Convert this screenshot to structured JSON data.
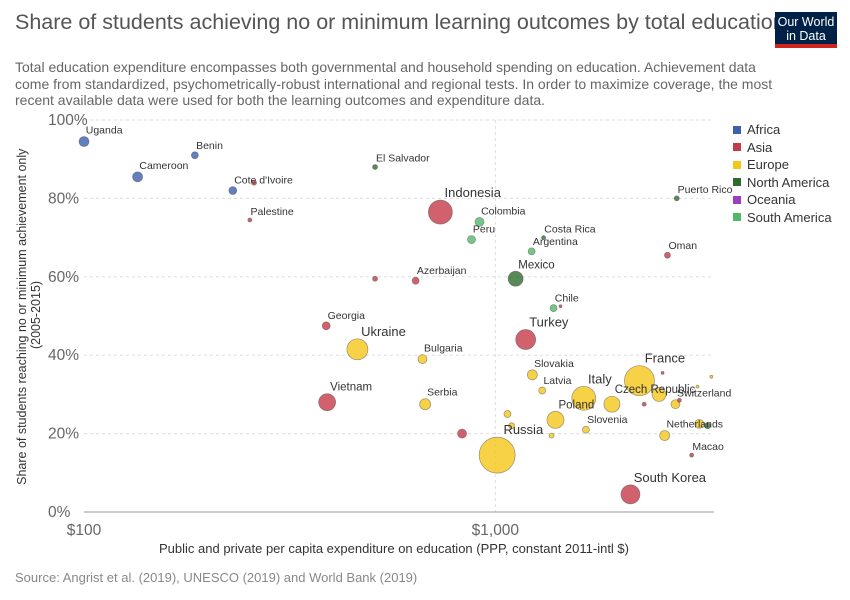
{
  "header": {
    "title": "Share of students achieving no or minimum learning outcomes by total education expenditure per capita",
    "subtitle_lines": [
      "Total education expenditure encompasses both governmental and household spending on education. Achievement data",
      "come from standardized, psychometrically-robust international and regional tests. In order to maximize coverage, the most",
      "recent available data were used for both the learning outcomes and expenditure data."
    ],
    "logo_line1": "Our World",
    "logo_line2": "in Data"
  },
  "source": "Source: Angrist et al. (2019), UNESCO (2019) and World Bank (2019)",
  "legend": [
    {
      "name": "Africa",
      "color": "#3c5fb0"
    },
    {
      "name": "Asia",
      "color": "#c43a49"
    },
    {
      "name": "Europe",
      "color": "#f5c518"
    },
    {
      "name": "North America",
      "color": "#2e6b2e"
    },
    {
      "name": "Oceania",
      "color": "#9b3fbf"
    },
    {
      "name": "South America",
      "color": "#52b96b"
    }
  ],
  "chart_data": {
    "type": "scatter",
    "title": "Share of students achieving no or minimum learning outcomes by total education expenditure per capita",
    "xlabel": "Public and private per capita expenditure on education (PPP, constant 2011-intl $)",
    "ylabel_lines": [
      "Share of students reaching no or minimum achievement only",
      "(2005-2015)"
    ],
    "x_scale": "log",
    "xlim": [
      100,
      3400
    ],
    "ylim": [
      0,
      100
    ],
    "x_ticks": [
      {
        "value": 100,
        "label": "$100"
      },
      {
        "value": 1000,
        "label": "$1,000"
      }
    ],
    "y_ticks": [
      {
        "value": 0,
        "label": "0%"
      },
      {
        "value": 20,
        "label": "20%"
      },
      {
        "value": 40,
        "label": "40%"
      },
      {
        "value": 60,
        "label": "60%"
      },
      {
        "value": 80,
        "label": "80%"
      },
      {
        "value": 100,
        "label": "100%"
      }
    ],
    "grid": true,
    "legend_position": "right",
    "points": [
      {
        "label": "Uganda",
        "x": 100,
        "y": 94.5,
        "region": "Africa",
        "size": 5
      },
      {
        "label": "Benin",
        "x": 186,
        "y": 91,
        "region": "Africa",
        "size": 3.5
      },
      {
        "label": "Cameroon",
        "x": 135,
        "y": 85.5,
        "region": "Africa",
        "size": 5
      },
      {
        "label": "Cote d'Ivoire",
        "x": 230,
        "y": 82,
        "region": "Africa",
        "size": 4
      },
      {
        "label": "",
        "x": 259,
        "y": 84,
        "region": "Asia",
        "size": 2.5
      },
      {
        "label": "El Salvador",
        "x": 510,
        "y": 88,
        "region": "North America",
        "size": 2.5
      },
      {
        "label": "Palestine",
        "x": 253,
        "y": 74.5,
        "region": "Asia",
        "size": 2
      },
      {
        "label": "Indonesia",
        "x": 735,
        "y": 76.5,
        "region": "Asia",
        "size": 12
      },
      {
        "label": "Colombia",
        "x": 915,
        "y": 74,
        "region": "South America",
        "size": 4.5
      },
      {
        "label": "Peru",
        "x": 875,
        "y": 69.5,
        "region": "South America",
        "size": 4
      },
      {
        "label": "Costa Rica",
        "x": 1310,
        "y": 70,
        "region": "North America",
        "size": 2
      },
      {
        "label": "Argentina",
        "x": 1225,
        "y": 66.5,
        "region": "South America",
        "size": 3.5
      },
      {
        "label": "Puerto Rico",
        "x": 2760,
        "y": 80,
        "region": "North America",
        "size": 2.5
      },
      {
        "label": "Oman",
        "x": 2620,
        "y": 65.5,
        "region": "Asia",
        "size": 3
      },
      {
        "label": "",
        "x": 510,
        "y": 59.5,
        "region": "Asia",
        "size": 2.5
      },
      {
        "label": "Azerbaijan",
        "x": 640,
        "y": 59,
        "region": "Asia",
        "size": 3.5
      },
      {
        "label": "Mexico",
        "x": 1120,
        "y": 59.5,
        "region": "North America",
        "size": 7.5
      },
      {
        "label": "Chile",
        "x": 1385,
        "y": 52,
        "region": "South America",
        "size": 3.5
      },
      {
        "label": "",
        "x": 1440,
        "y": 52.5,
        "region": "Asia",
        "size": 1.5
      },
      {
        "label": "Georgia",
        "x": 388,
        "y": 47.5,
        "region": "Asia",
        "size": 4
      },
      {
        "label": "Ukraine",
        "x": 462,
        "y": 41.5,
        "region": "Europe",
        "size": 10.5
      },
      {
        "label": "Bulgaria",
        "x": 665,
        "y": 39,
        "region": "Europe",
        "size": 4.5
      },
      {
        "label": "Turkey",
        "x": 1185,
        "y": 44,
        "region": "Asia",
        "size": 10
      },
      {
        "label": "Slovakia",
        "x": 1230,
        "y": 35,
        "region": "Europe",
        "size": 5
      },
      {
        "label": "Latvia",
        "x": 1300,
        "y": 31,
        "region": "Europe",
        "size": 3.5
      },
      {
        "label": "Vietnam",
        "x": 390,
        "y": 28,
        "region": "Asia",
        "size": 8.5
      },
      {
        "label": "Serbia",
        "x": 675,
        "y": 27.5,
        "region": "Europe",
        "size": 5.5
      },
      {
        "label": "France",
        "x": 2240,
        "y": 33.5,
        "region": "Europe",
        "size": 15
      },
      {
        "label": "Italy",
        "x": 1640,
        "y": 29,
        "region": "Europe",
        "size": 12
      },
      {
        "label": "Czech Republic",
        "x": 1920,
        "y": 27.5,
        "region": "Europe",
        "size": 8
      },
      {
        "label": "Poland",
        "x": 1400,
        "y": 23.5,
        "region": "Europe",
        "size": 8.5
      },
      {
        "label": "",
        "x": 2500,
        "y": 30,
        "region": "Europe",
        "size": 7
      },
      {
        "label": "",
        "x": 2550,
        "y": 35.5,
        "region": "Asia",
        "size": 1.5
      },
      {
        "label": "",
        "x": 2300,
        "y": 27.5,
        "region": "Asia",
        "size": 2
      },
      {
        "label": "Switzerland",
        "x": 2740,
        "y": 27.5,
        "region": "Europe",
        "size": 4.5
      },
      {
        "label": "",
        "x": 2800,
        "y": 28.5,
        "region": "Asia",
        "size": 2
      },
      {
        "label": "",
        "x": 3100,
        "y": 32,
        "region": "Europe",
        "size": 1.5
      },
      {
        "label": "",
        "x": 3350,
        "y": 34.5,
        "region": "Europe",
        "size": 1.5
      },
      {
        "label": "Slovenia",
        "x": 1660,
        "y": 21,
        "region": "Europe",
        "size": 3.5
      },
      {
        "label": "Netherlands",
        "x": 2580,
        "y": 19.5,
        "region": "Europe",
        "size": 5
      },
      {
        "label": "",
        "x": 3130,
        "y": 22.5,
        "region": "Europe",
        "size": 4.5
      },
      {
        "label": "",
        "x": 3280,
        "y": 22,
        "region": "North America",
        "size": 3
      },
      {
        "label": "",
        "x": 1070,
        "y": 25,
        "region": "Europe",
        "size": 3.5
      },
      {
        "label": "",
        "x": 1095,
        "y": 22,
        "region": "Europe",
        "size": 3
      },
      {
        "label": "",
        "x": 1370,
        "y": 19.5,
        "region": "Europe",
        "size": 2.5
      },
      {
        "label": "",
        "x": 830,
        "y": 20,
        "region": "Asia",
        "size": 4.5
      },
      {
        "label": "Russia",
        "x": 1010,
        "y": 14.5,
        "region": "Europe",
        "size": 18
      },
      {
        "label": "Macao",
        "x": 3000,
        "y": 14.5,
        "region": "Asia",
        "size": 2
      },
      {
        "label": "South Korea",
        "x": 2130,
        "y": 4.5,
        "region": "Asia",
        "size": 9.5
      }
    ]
  }
}
